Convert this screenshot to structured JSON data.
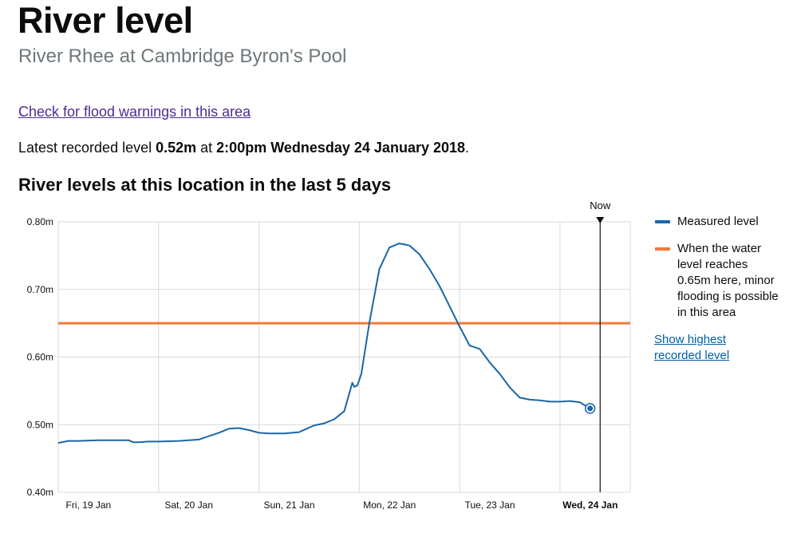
{
  "page": {
    "title": "River level",
    "subtitle": "River Rhee at Cambridge Byron's Pool",
    "flood_link": "Check for flood warnings in this area",
    "latest": {
      "prefix": "Latest recorded level ",
      "level": "0.52m",
      "middle": " at ",
      "time": "2:00pm Wednesday 24 January 2018",
      "suffix": "."
    },
    "chart_heading": "River levels at this location in the last 5 days",
    "legend": {
      "measured_label": "Measured level",
      "flood_label": "When the water level reaches 0.65m here, minor flooding is possible in this area",
      "highest_link": "Show highest recorded level"
    },
    "colors": {
      "measured": "#1a66a6",
      "threshold": "#f47738",
      "grid": "#d8d8d8",
      "now_marker": "#0b0c0c"
    }
  },
  "chart_data": {
    "type": "line",
    "title": "River levels at this location in the last 5 days",
    "xlabel": "",
    "ylabel": "",
    "ylim": [
      0.4,
      0.8
    ],
    "xlim": [
      0,
      5.7
    ],
    "y_ticks": [
      0.4,
      0.5,
      0.6,
      0.7,
      0.8
    ],
    "y_tick_labels": [
      "0.40m",
      "0.50m",
      "0.60m",
      "0.70m",
      "0.80m"
    ],
    "x_ticks": [
      0,
      1,
      2,
      3,
      4,
      5
    ],
    "x_tick_labels": [
      "Fri, 19 Jan",
      "Sat, 20 Jan",
      "Sun, 21 Jan",
      "Mon, 22 Jan",
      "Tue, 23 Jan",
      "Wed, 24 Jan"
    ],
    "bold_x_tick_index": 5,
    "grid": true,
    "legend_position": "right",
    "now_label": "Now",
    "now_x": 5.4,
    "threshold": {
      "name": "When the water level reaches 0.65m here, minor flooding is possible in this area",
      "value": 0.65
    },
    "latest_point": {
      "x": 5.3,
      "y": 0.524
    },
    "series": [
      {
        "name": "Measured level",
        "x": [
          0,
          0.1,
          0.2,
          0.4,
          0.6,
          0.7,
          0.75,
          0.8,
          0.9,
          1.0,
          1.2,
          1.4,
          1.6,
          1.7,
          1.8,
          1.9,
          2.0,
          2.1,
          2.25,
          2.4,
          2.55,
          2.65,
          2.75,
          2.85,
          2.93,
          2.95,
          2.98,
          3.02,
          3.1,
          3.2,
          3.3,
          3.4,
          3.5,
          3.6,
          3.7,
          3.8,
          3.9,
          4.0,
          4.1,
          4.2,
          4.28,
          4.3,
          4.4,
          4.5,
          4.6,
          4.7,
          4.8,
          4.9,
          5.0,
          5.1,
          5.2,
          5.3
        ],
        "values": [
          0.473,
          0.476,
          0.476,
          0.477,
          0.477,
          0.477,
          0.474,
          0.474,
          0.475,
          0.475,
          0.476,
          0.478,
          0.488,
          0.494,
          0.495,
          0.492,
          0.488,
          0.487,
          0.487,
          0.489,
          0.499,
          0.502,
          0.508,
          0.52,
          0.562,
          0.556,
          0.558,
          0.575,
          0.65,
          0.73,
          0.762,
          0.768,
          0.765,
          0.752,
          0.73,
          0.705,
          0.675,
          0.645,
          0.617,
          0.612,
          0.596,
          0.592,
          0.575,
          0.555,
          0.54,
          0.537,
          0.536,
          0.534,
          0.534,
          0.535,
          0.533,
          0.524
        ]
      }
    ]
  }
}
